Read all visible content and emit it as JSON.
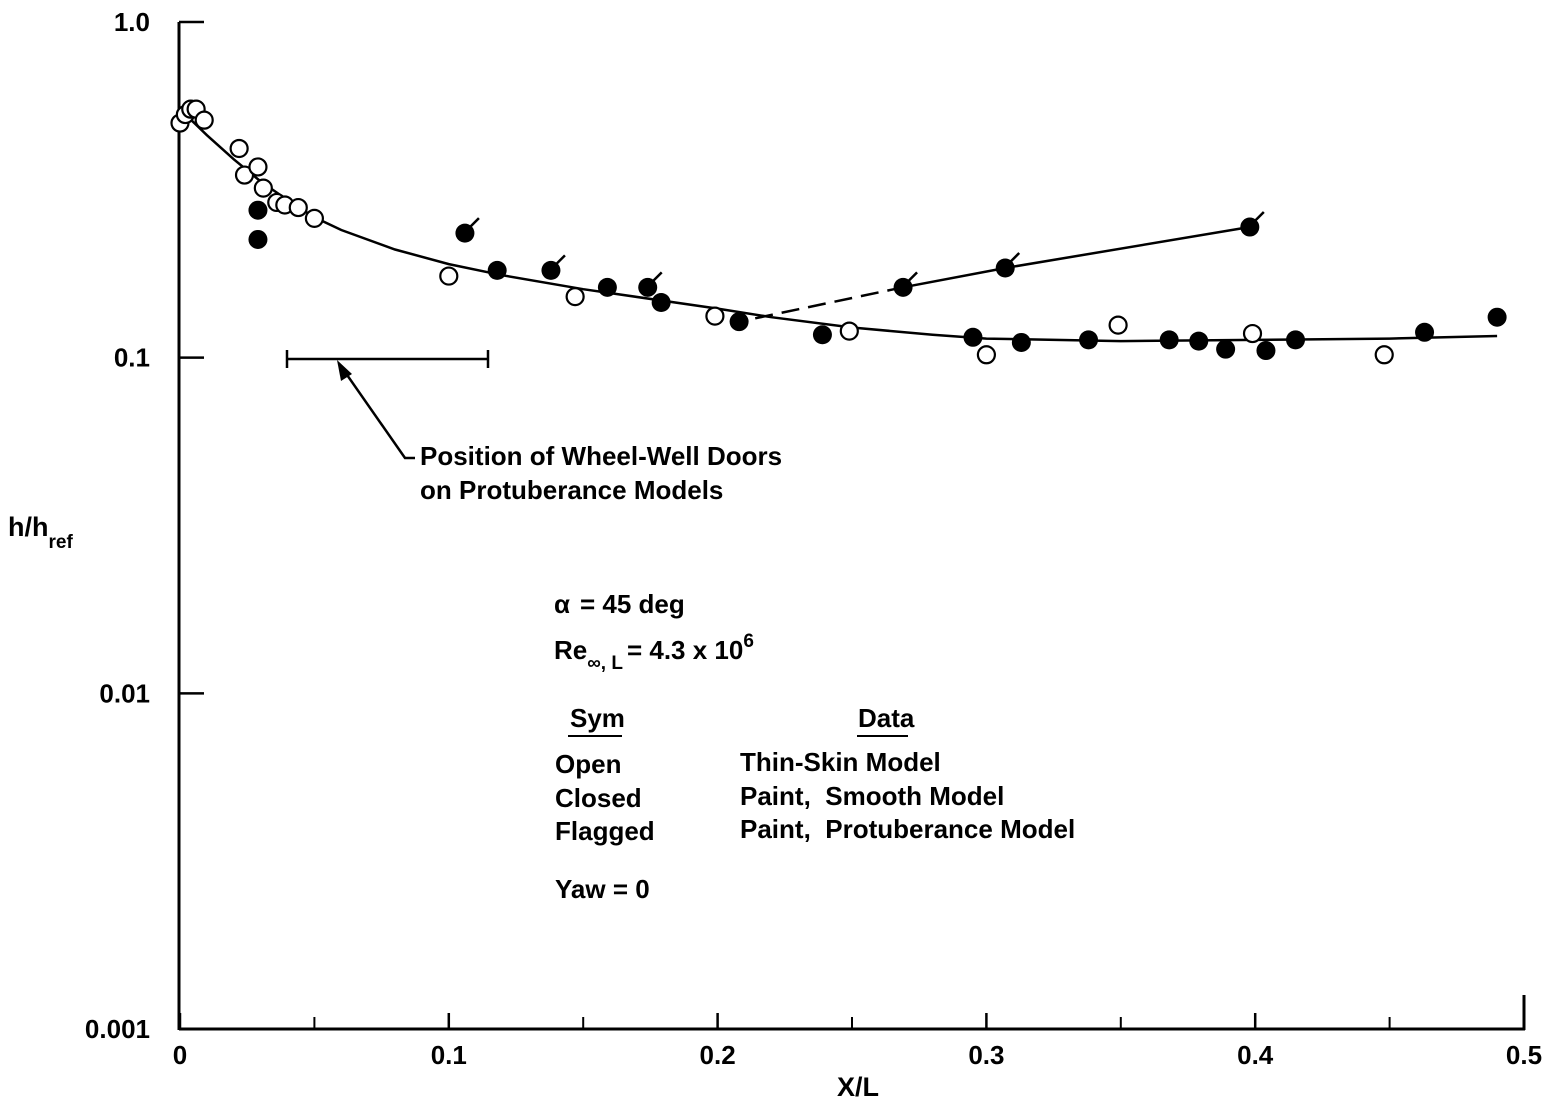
{
  "chart_data": {
    "type": "scatter",
    "x_axis": {
      "label": "X/L",
      "range": [
        0,
        0.5
      ],
      "ticks": [
        0,
        0.1,
        0.2,
        0.3,
        0.4,
        0.5
      ],
      "tick_labels": [
        "0",
        "0.1",
        "0.2",
        "0.3",
        "0.4",
        "0.5"
      ]
    },
    "y_axis": {
      "label_main": "h/h",
      "label_sub": "ref",
      "scale": "log",
      "range": [
        0.001,
        1.0
      ],
      "ticks": [
        0.001,
        0.01,
        0.1,
        1.0
      ],
      "tick_labels": [
        "0.001",
        "0.01",
        "0.1",
        "1.0"
      ]
    },
    "grid": false,
    "series": [
      {
        "name": "Thin-Skin Model",
        "marker": "open-circle",
        "points": [
          [
            0.0,
            0.5
          ],
          [
            0.002,
            0.53
          ],
          [
            0.004,
            0.55
          ],
          [
            0.006,
            0.55
          ],
          [
            0.009,
            0.51
          ],
          [
            0.022,
            0.42
          ],
          [
            0.024,
            0.35
          ],
          [
            0.029,
            0.37
          ],
          [
            0.031,
            0.32
          ],
          [
            0.036,
            0.29
          ],
          [
            0.039,
            0.285
          ],
          [
            0.044,
            0.28
          ],
          [
            0.05,
            0.26
          ],
          [
            0.1,
            0.175
          ],
          [
            0.147,
            0.152
          ],
          [
            0.199,
            0.133
          ],
          [
            0.249,
            0.12
          ],
          [
            0.3,
            0.102
          ],
          [
            0.349,
            0.125
          ],
          [
            0.399,
            0.118
          ],
          [
            0.448,
            0.102
          ]
        ]
      },
      {
        "name": "Paint, Smooth Model",
        "marker": "closed-circle",
        "points": [
          [
            0.029,
            0.275
          ],
          [
            0.029,
            0.225
          ],
          [
            0.118,
            0.182
          ],
          [
            0.159,
            0.162
          ],
          [
            0.179,
            0.146
          ],
          [
            0.208,
            0.128
          ],
          [
            0.239,
            0.117
          ],
          [
            0.295,
            0.115
          ],
          [
            0.313,
            0.111
          ],
          [
            0.338,
            0.113
          ],
          [
            0.368,
            0.113
          ],
          [
            0.379,
            0.112
          ],
          [
            0.389,
            0.106
          ],
          [
            0.404,
            0.105
          ],
          [
            0.415,
            0.113
          ],
          [
            0.463,
            0.119
          ],
          [
            0.49,
            0.132
          ]
        ]
      },
      {
        "name": "Paint, Protuberance Model",
        "marker": "flagged-circle",
        "points": [
          [
            0.106,
            0.235
          ],
          [
            0.138,
            0.182
          ],
          [
            0.174,
            0.162
          ],
          [
            0.269,
            0.162
          ],
          [
            0.307,
            0.185
          ],
          [
            0.398,
            0.245
          ]
        ]
      }
    ],
    "curves": [
      {
        "style": "solid",
        "points": [
          [
            0.0,
            0.55
          ],
          [
            0.01,
            0.46
          ],
          [
            0.02,
            0.39
          ],
          [
            0.03,
            0.335
          ],
          [
            0.04,
            0.295
          ],
          [
            0.05,
            0.262
          ],
          [
            0.06,
            0.24
          ],
          [
            0.08,
            0.21
          ],
          [
            0.1,
            0.19
          ],
          [
            0.12,
            0.176
          ],
          [
            0.15,
            0.16
          ],
          [
            0.2,
            0.14
          ],
          [
            0.22,
            0.132
          ],
          [
            0.25,
            0.123
          ],
          [
            0.28,
            0.117
          ],
          [
            0.3,
            0.114
          ],
          [
            0.35,
            0.112
          ],
          [
            0.4,
            0.113
          ],
          [
            0.45,
            0.114
          ],
          [
            0.49,
            0.116
          ]
        ]
      },
      {
        "style": "dashed",
        "points": [
          [
            0.214,
            0.131
          ],
          [
            0.269,
            0.162
          ]
        ]
      },
      {
        "style": "solid",
        "points": [
          [
            0.269,
            0.162
          ],
          [
            0.307,
            0.185
          ],
          [
            0.398,
            0.245
          ]
        ]
      }
    ],
    "interval_marker": {
      "x_start": 0.04,
      "x_end": 0.114,
      "y": 0.1
    },
    "annotation": {
      "line1": "Position of Wheel-Well Doors",
      "line2": "on Protuberance Models"
    },
    "conditions": {
      "alpha_symbol": "α",
      "alpha_text": "= 45 deg",
      "re_main": "Re",
      "re_sub": "∞, L",
      "re_text": "= 4.3 x 10",
      "re_exp": "6",
      "yaw": "Yaw = 0"
    },
    "legend": {
      "header_sym": "Sym",
      "header_data": "Data",
      "rows": [
        {
          "sym": "Open",
          "data": "Thin-Skin Model"
        },
        {
          "sym": "Closed",
          "data": "Paint,  Smooth Model"
        },
        {
          "sym": "Flagged",
          "data": "Paint,  Protuberance Model"
        }
      ]
    }
  }
}
